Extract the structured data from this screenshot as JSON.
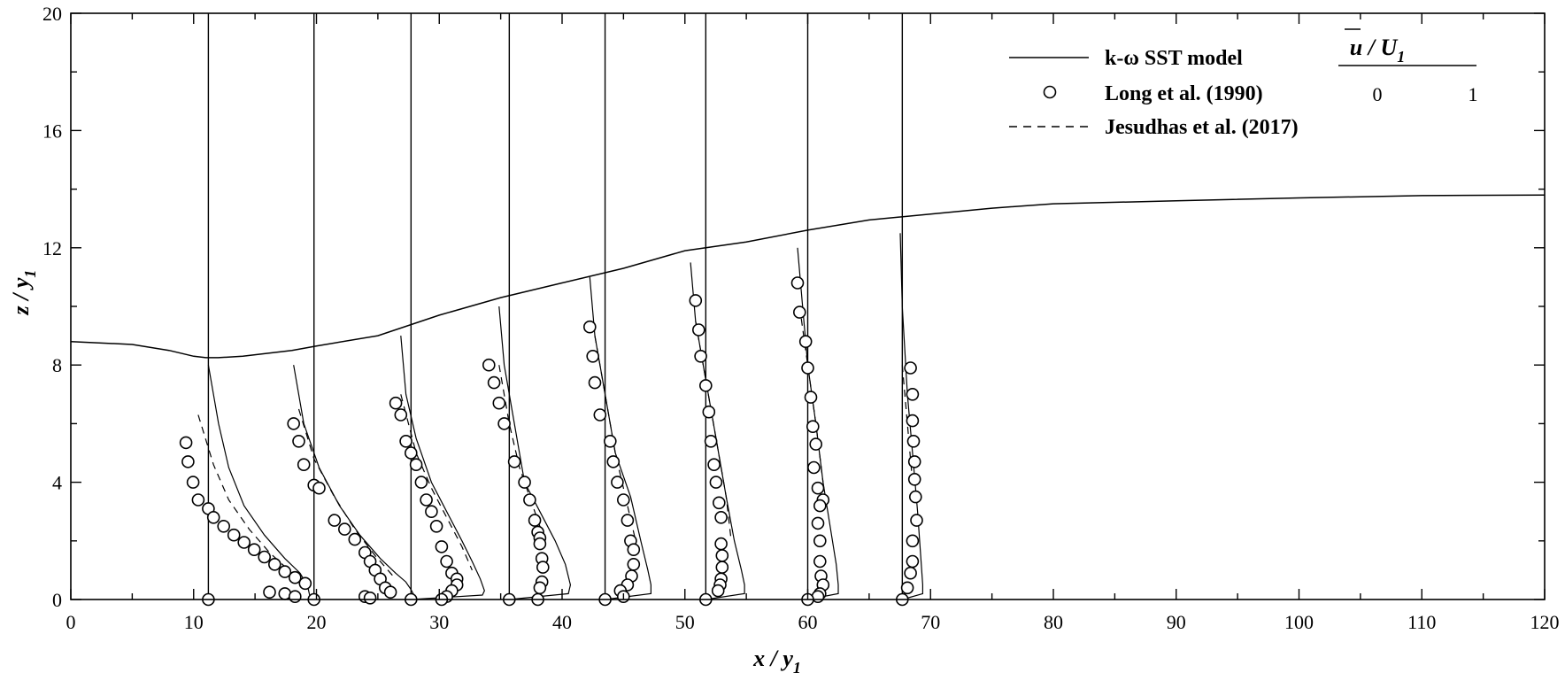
{
  "chart_data": {
    "type": "line",
    "title": "",
    "xlabel": "x / y",
    "xlabel_sub": "1",
    "ylabel": "z / y",
    "ylabel_sub": "1",
    "xlim": [
      0,
      120
    ],
    "ylim": [
      0,
      20
    ],
    "x_ticks": [
      0,
      10,
      20,
      30,
      40,
      50,
      60,
      70,
      80,
      90,
      100,
      110,
      120
    ],
    "y_ticks": [
      0,
      4,
      8,
      12,
      16,
      20
    ],
    "grid": false,
    "legend_position": "top-right",
    "legend": [
      {
        "label": "k-ω SST model",
        "style": "solid"
      },
      {
        "label": "Long et al. (1990)",
        "style": "circle"
      },
      {
        "label": "Jesudhas et al. (2017)",
        "style": "dashed"
      }
    ],
    "velocity_scale": {
      "title": "u / U",
      "title_sub": "1",
      "labels": [
        "0",
        "1"
      ],
      "unit_length_x": 8.3
    },
    "free_surface": {
      "x": [
        0,
        5,
        8,
        10,
        11,
        12,
        14,
        16,
        18,
        20,
        25,
        30,
        35,
        40,
        45,
        50,
        55,
        60,
        65,
        70,
        75,
        80,
        90,
        100,
        110,
        120
      ],
      "z": [
        8.8,
        8.7,
        8.5,
        8.3,
        8.25,
        8.25,
        8.3,
        8.4,
        8.5,
        8.65,
        9.0,
        9.7,
        10.3,
        10.8,
        11.3,
        11.9,
        12.2,
        12.6,
        12.95,
        13.15,
        13.35,
        13.5,
        13.6,
        13.7,
        13.78,
        13.8
      ]
    },
    "stations": [
      {
        "x": 11.2,
        "top": 20,
        "model": {
          "u": [
            0,
            0.1,
            0.2,
            0.35,
            0.55,
            0.75,
            0.9,
            0.95,
            0.98,
            0.99,
            1.0,
            1.01
          ],
          "z": [
            8.0,
            6.0,
            4.5,
            3.2,
            2.2,
            1.4,
            0.9,
            0.6,
            0.35,
            0.2,
            0.08,
            0.0
          ]
        },
        "les": {
          "u": [
            -0.1,
            0.05,
            0.2,
            0.4,
            0.6,
            0.85,
            0.95
          ],
          "z": [
            6.3,
            4.6,
            3.4,
            2.4,
            1.6,
            0.8,
            0.4
          ]
        },
        "exp": {
          "u": [
            -0.22,
            -0.2,
            -0.15,
            -0.1,
            0.0,
            0.05,
            0.15,
            0.25,
            0.35,
            0.45,
            0.55,
            0.65,
            0.75,
            0.85,
            0.95,
            0.6,
            0.75,
            0.85,
            0.0
          ],
          "z": [
            5.35,
            4.7,
            4.0,
            3.4,
            3.1,
            2.8,
            2.5,
            2.2,
            1.95,
            1.7,
            1.45,
            1.2,
            0.95,
            0.75,
            0.55,
            0.25,
            0.2,
            0.1,
            0.0
          ]
        }
      },
      {
        "x": 19.8,
        "top": 20,
        "model": {
          "u": [
            -0.2,
            -0.1,
            0.05,
            0.25,
            0.45,
            0.65,
            0.8,
            0.9,
            0.95,
            0.98,
            1.0
          ],
          "z": [
            8.0,
            6.0,
            4.5,
            3.2,
            2.2,
            1.4,
            0.9,
            0.6,
            0.35,
            0.15,
            0.0
          ]
        },
        "les": {
          "u": [
            -0.15,
            0.0,
            0.2,
            0.4,
            0.6,
            0.8
          ],
          "z": [
            6.5,
            4.8,
            3.5,
            2.4,
            1.5,
            0.7
          ]
        },
        "exp": {
          "u": [
            -0.2,
            -0.15,
            -0.1,
            0.0,
            0.05,
            0.2,
            0.3,
            0.4,
            0.5,
            0.55,
            0.6,
            0.65,
            0.7,
            0.75,
            0.5,
            0.55,
            0.0
          ],
          "z": [
            6.0,
            5.4,
            4.6,
            3.9,
            3.8,
            2.7,
            2.4,
            2.05,
            1.6,
            1.3,
            1.0,
            0.7,
            0.4,
            0.25,
            0.1,
            0.05,
            0.0
          ]
        }
      },
      {
        "x": 27.7,
        "top": 20,
        "model": {
          "u": [
            -0.1,
            -0.05,
            0.05,
            0.2,
            0.35,
            0.5,
            0.6,
            0.68,
            0.72,
            0.7,
            0.0
          ],
          "z": [
            9.0,
            7.0,
            5.5,
            4.0,
            3.0,
            2.0,
            1.3,
            0.7,
            0.3,
            0.15,
            0.0
          ]
        },
        "les": {
          "u": [
            -0.1,
            0.05,
            0.2,
            0.35,
            0.5,
            0.6
          ],
          "z": [
            7.0,
            5.0,
            3.8,
            2.8,
            1.8,
            1.0
          ]
        },
        "exp": {
          "u": [
            -0.15,
            -0.1,
            -0.05,
            0.0,
            0.05,
            0.1,
            0.15,
            0.2,
            0.25,
            0.3,
            0.35,
            0.4,
            0.45,
            0.45,
            0.4,
            0.35,
            0.0,
            0.3
          ],
          "z": [
            6.7,
            6.3,
            5.4,
            5.0,
            4.6,
            4.0,
            3.4,
            3.0,
            2.5,
            1.8,
            1.3,
            0.9,
            0.7,
            0.5,
            0.3,
            0.1,
            0.0,
            0.0
          ]
        }
      },
      {
        "x": 35.7,
        "top": 20,
        "model": {
          "u": [
            -0.1,
            -0.05,
            0.05,
            0.15,
            0.3,
            0.45,
            0.55,
            0.6,
            0.58,
            0.0
          ],
          "z": [
            10.0,
            8.0,
            6.0,
            4.0,
            3.0,
            2.0,
            1.2,
            0.5,
            0.2,
            0.0
          ]
        },
        "les": {
          "u": [
            -0.1,
            0.0,
            0.1,
            0.25,
            0.35
          ],
          "z": [
            8.0,
            6.0,
            4.5,
            3.0,
            2.0
          ]
        },
        "exp": {
          "u": [
            -0.2,
            -0.15,
            -0.1,
            -0.05,
            0.05,
            0.15,
            0.2,
            0.25,
            0.28,
            0.3,
            0.3,
            0.32,
            0.33,
            0.32,
            0.3,
            0.0,
            0.28
          ],
          "z": [
            8.0,
            7.4,
            6.7,
            6.0,
            4.7,
            4.0,
            3.4,
            2.7,
            2.3,
            2.1,
            1.9,
            1.4,
            1.1,
            0.6,
            0.4,
            0.0,
            0.0
          ]
        }
      },
      {
        "x": 43.5,
        "top": 20,
        "model": {
          "u": [
            -0.15,
            -0.1,
            0.0,
            0.1,
            0.25,
            0.35,
            0.42,
            0.45,
            0.45,
            0.0
          ],
          "z": [
            11.0,
            9.0,
            7.0,
            5.0,
            3.5,
            2.0,
            1.0,
            0.5,
            0.2,
            0.0
          ]
        },
        "les": {
          "u": [
            -0.1,
            0.0,
            0.1,
            0.2,
            0.3
          ],
          "z": [
            9.0,
            7.0,
            5.0,
            3.5,
            2.0
          ]
        },
        "exp": {
          "u": [
            -0.15,
            -0.12,
            -0.1,
            -0.05,
            0.05,
            0.08,
            0.12,
            0.18,
            0.22,
            0.25,
            0.28,
            0.28,
            0.26,
            0.22,
            0.15,
            0.0,
            0.18
          ],
          "z": [
            9.3,
            8.3,
            7.4,
            6.3,
            5.4,
            4.7,
            4.0,
            3.4,
            2.7,
            2.0,
            1.7,
            1.2,
            0.8,
            0.5,
            0.3,
            0.0,
            0.1
          ]
        }
      },
      {
        "x": 51.7,
        "top": 20,
        "model": {
          "u": [
            -0.15,
            -0.1,
            0.0,
            0.1,
            0.2,
            0.28,
            0.35,
            0.38,
            0.38,
            0.0
          ],
          "z": [
            11.5,
            9.5,
            7.5,
            5.5,
            3.5,
            2.0,
            1.0,
            0.5,
            0.2,
            0.0
          ]
        },
        "les": {
          "u": [
            -0.1,
            0.0,
            0.1,
            0.2,
            0.25
          ],
          "z": [
            9.5,
            7.5,
            5.5,
            3.5,
            2.0
          ]
        },
        "exp": {
          "u": [
            -0.1,
            -0.07,
            -0.05,
            0.0,
            0.03,
            0.05,
            0.08,
            0.1,
            0.13,
            0.15,
            0.15,
            0.16,
            0.16,
            0.15,
            0.14,
            0.12,
            0.0
          ],
          "z": [
            10.2,
            9.2,
            8.3,
            7.3,
            6.4,
            5.4,
            4.6,
            4.0,
            3.3,
            2.8,
            1.9,
            1.5,
            1.1,
            0.7,
            0.5,
            0.3,
            0.0
          ]
        }
      },
      {
        "x": 60.0,
        "top": 20,
        "model": {
          "u": [
            -0.1,
            -0.05,
            0.0,
            0.08,
            0.15,
            0.22,
            0.28,
            0.3,
            0.3,
            0.0
          ],
          "z": [
            12.0,
            10.0,
            8.0,
            6.0,
            4.0,
            2.5,
            1.2,
            0.5,
            0.2,
            0.0
          ]
        },
        "les": {
          "u": [
            -0.08,
            0.0,
            0.08,
            0.15
          ],
          "z": [
            10.0,
            8.0,
            6.0,
            4.0
          ]
        },
        "exp": {
          "u": [
            -0.1,
            -0.08,
            -0.02,
            0.0,
            0.03,
            0.05,
            0.08,
            0.06,
            0.1,
            0.15,
            0.12,
            0.1,
            0.12,
            0.12,
            0.13,
            0.15,
            0.12,
            0.1,
            0.0
          ],
          "z": [
            10.8,
            9.8,
            8.8,
            7.9,
            6.9,
            5.9,
            5.3,
            4.5,
            3.8,
            3.4,
            3.2,
            2.6,
            2.0,
            1.3,
            0.8,
            0.5,
            0.2,
            0.1,
            0.0
          ]
        }
      },
      {
        "x": 67.7,
        "top": 20,
        "model": {
          "u": [
            -0.02,
            0.0,
            0.05,
            0.1,
            0.15,
            0.18,
            0.2,
            0.2,
            0.0
          ],
          "z": [
            12.5,
            10.0,
            7.0,
            5.0,
            3.0,
            1.5,
            0.5,
            0.2,
            0.0
          ]
        },
        "les": {
          "u": [
            0.0,
            0.05,
            0.1
          ],
          "z": [
            8.0,
            6.0,
            4.0
          ]
        },
        "exp": {
          "u": [
            0.08,
            0.1,
            0.1,
            0.11,
            0.12,
            0.12,
            0.13,
            0.14,
            0.1,
            0.1,
            0.08,
            0.05,
            0.0
          ],
          "z": [
            7.9,
            7.0,
            6.1,
            5.4,
            4.7,
            4.1,
            3.5,
            2.7,
            2.0,
            1.3,
            0.9,
            0.4,
            0.0
          ]
        }
      }
    ]
  }
}
